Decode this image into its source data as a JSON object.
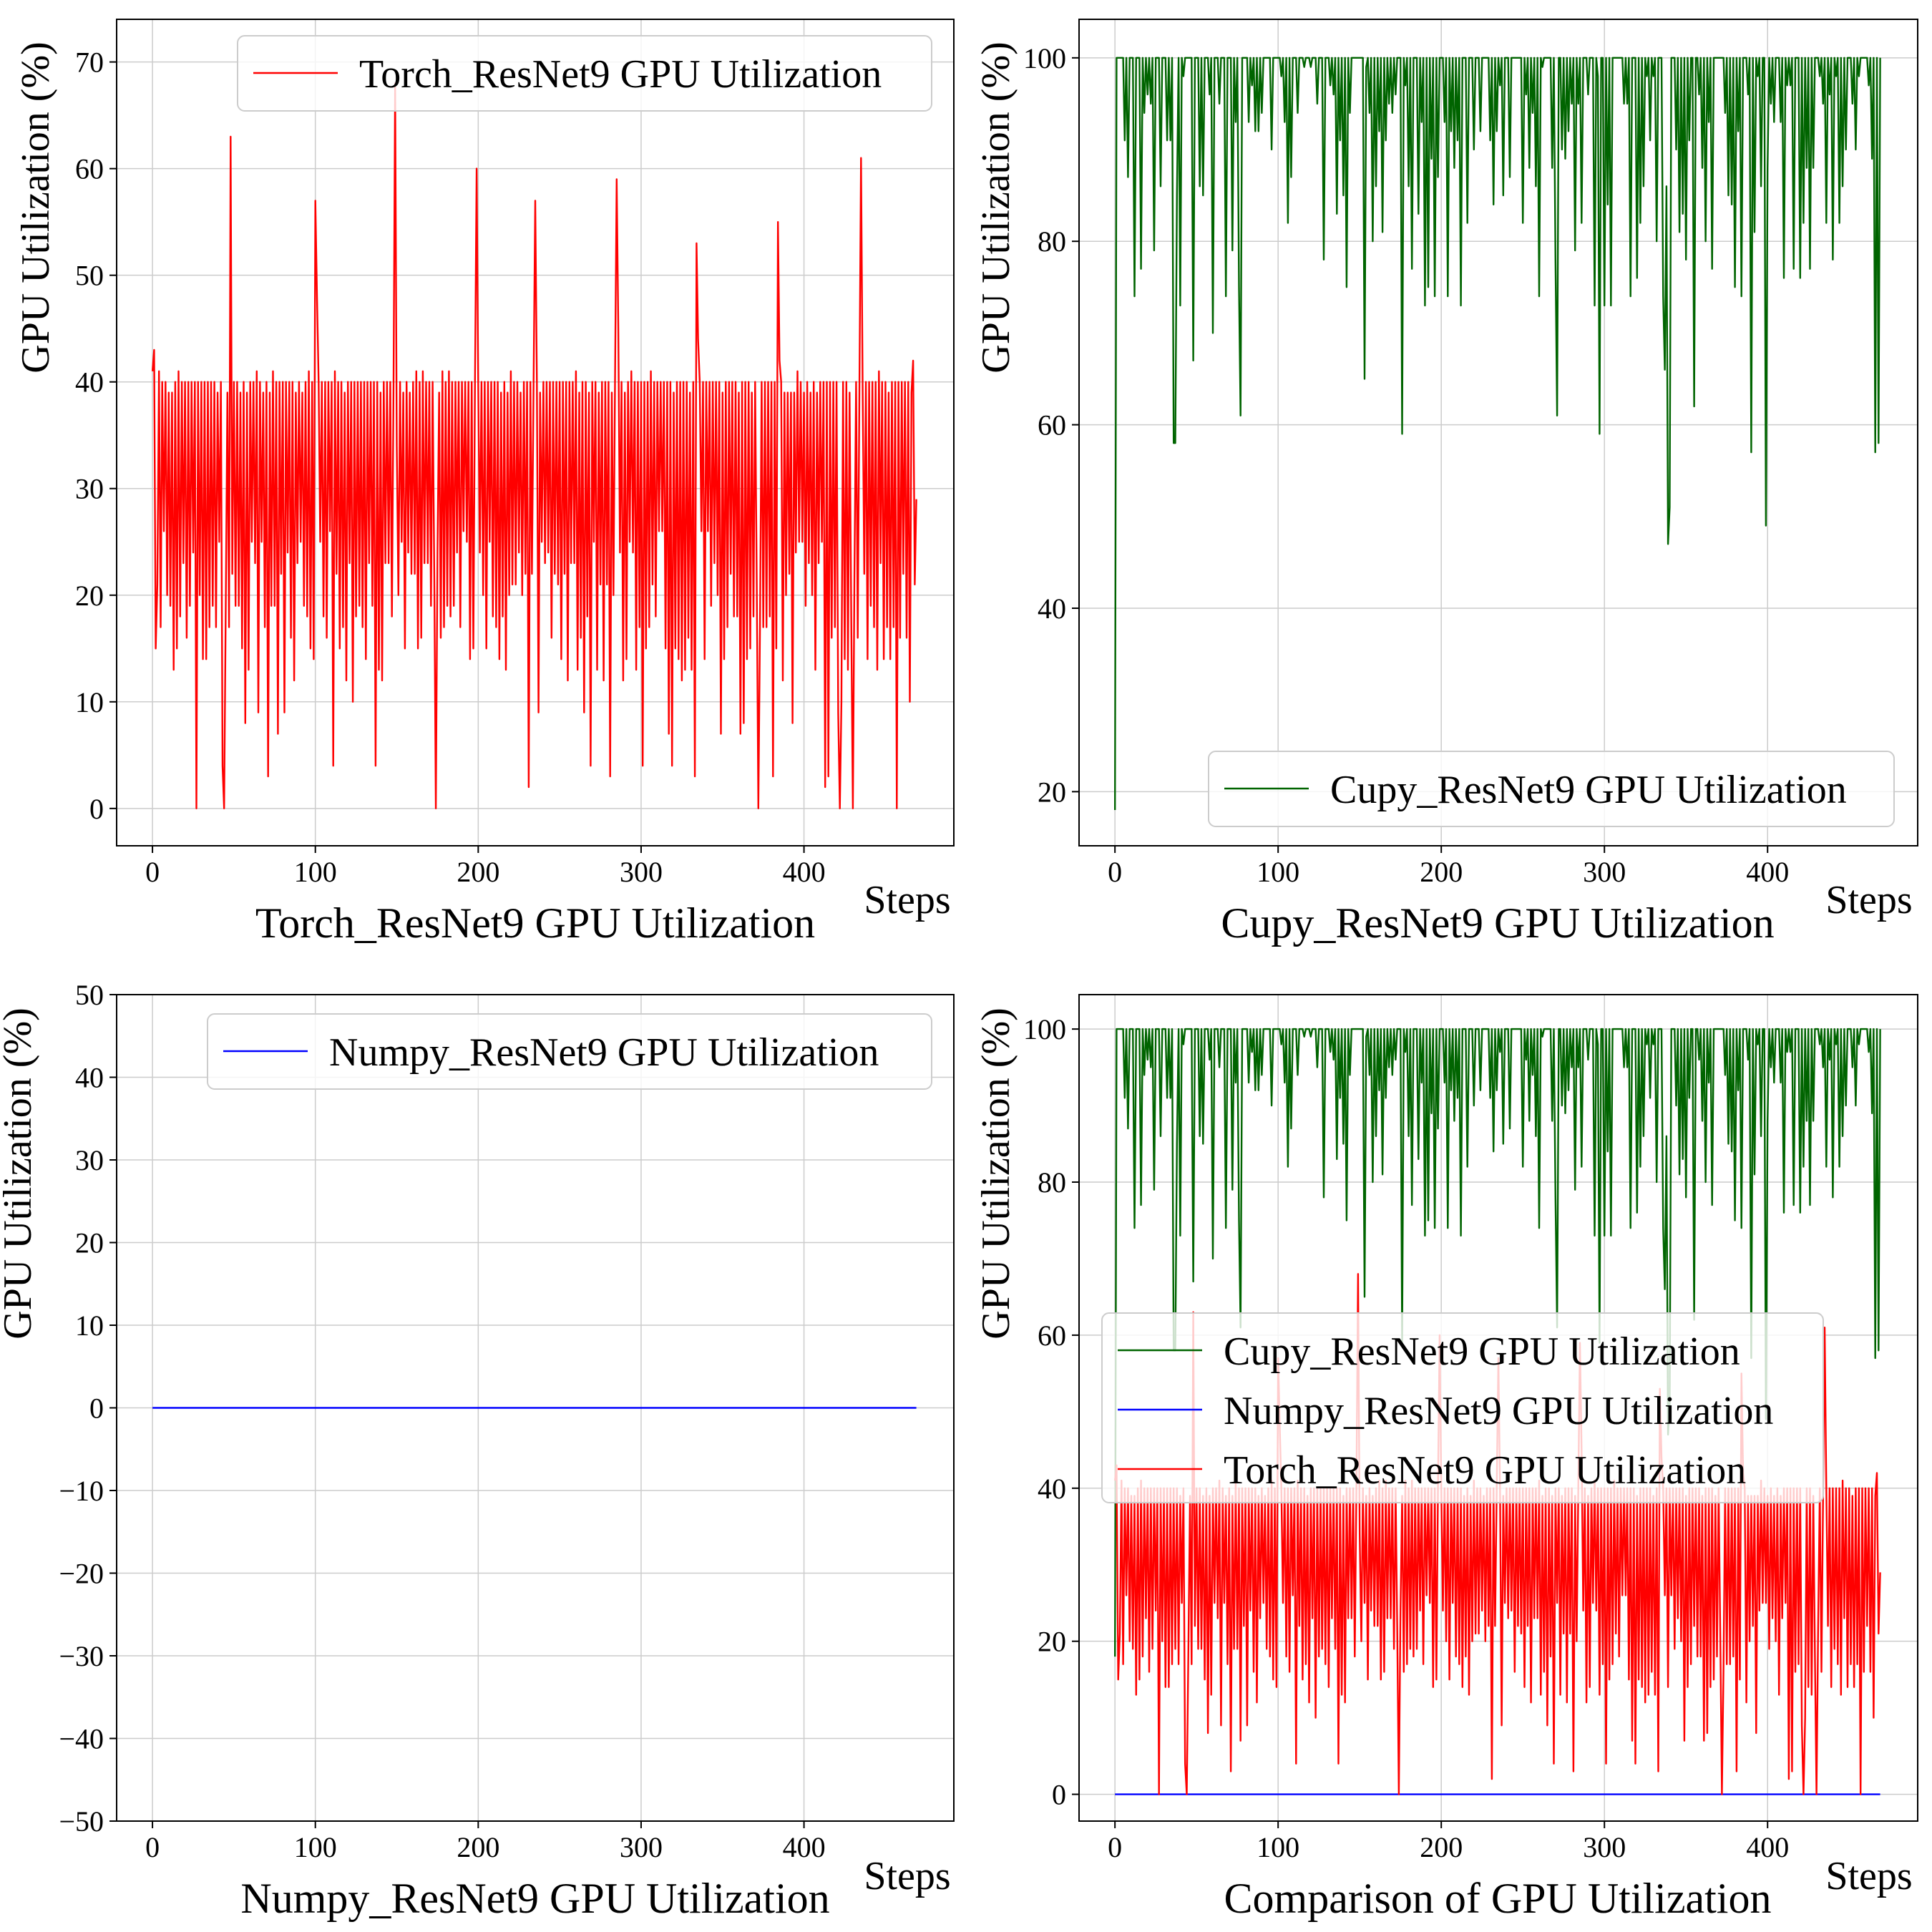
{
  "chart_data": [
    {
      "type": "line",
      "id": "torch",
      "title": "Torch_ResNet9 GPU Utilization",
      "xlabel": "Steps",
      "ylabel": "GPU Utilization (%)",
      "xlim": [
        -22,
        492
      ],
      "ylim": [
        -3.5,
        74
      ],
      "xticks": [
        0,
        100,
        200,
        300,
        400
      ],
      "yticks": [
        0,
        10,
        20,
        30,
        40,
        50,
        60,
        70
      ],
      "grid": true,
      "legend_position": "top-right",
      "series": [
        {
          "name": "Torch_ResNet9 GPU Utilization",
          "color": "#ff0000",
          "generator": "torch",
          "length": 470,
          "spikes": [
            [
              48,
              63
            ],
            [
              100,
              57
            ],
            [
              101,
              48
            ],
            [
              149,
              68
            ],
            [
              150,
              34
            ],
            [
              199,
              60
            ],
            [
              235,
              57
            ],
            [
              285,
              59
            ],
            [
              286,
              45
            ],
            [
              334,
              53
            ],
            [
              335,
              44
            ],
            [
              384,
              55
            ],
            [
              385,
              42
            ],
            [
              435,
              61
            ],
            [
              436,
              40
            ]
          ],
          "zeros": [
            27,
            44,
            174,
            372,
            422,
            430,
            457
          ]
        }
      ]
    },
    {
      "type": "line",
      "id": "cupy",
      "title": "Cupy_ResNet9 GPU Utilization",
      "xlabel": "Steps",
      "ylabel": "GPU Utilization (%)",
      "xlim": [
        -22,
        492
      ],
      "ylim": [
        14.1,
        104.2
      ],
      "xticks": [
        0,
        100,
        200,
        300,
        400
      ],
      "yticks": [
        20,
        40,
        60,
        80,
        100
      ],
      "grid": true,
      "legend_position": "bottom-right",
      "series": [
        {
          "name": "Cupy_ResNet9 GPU Utilization",
          "color": "#006400",
          "generator": "cupy",
          "length": 470,
          "start": 18,
          "dips": [
            [
              36,
              58
            ],
            [
              37,
              58
            ],
            [
              48,
              67
            ],
            [
              60,
              70
            ],
            [
              77,
              61
            ],
            [
              153,
              65
            ],
            [
              176,
              59
            ],
            [
              271,
              61
            ],
            [
              297,
              59
            ],
            [
              337,
              66
            ],
            [
              339,
              47
            ],
            [
              340,
              51
            ],
            [
              355,
              62
            ],
            [
              390,
              57
            ],
            [
              399,
              49
            ],
            [
              466,
              57
            ],
            [
              468,
              58
            ]
          ]
        }
      ]
    },
    {
      "type": "line",
      "id": "numpy",
      "title": "Numpy_ResNet9 GPU Utilization",
      "xlabel": "Steps",
      "ylabel": "GPU Utilization (%)",
      "xlim": [
        -22,
        492
      ],
      "ylim": [
        -50,
        50
      ],
      "xticks": [
        0,
        100,
        200,
        300,
        400
      ],
      "yticks": [
        -50,
        -40,
        -30,
        -20,
        -10,
        0,
        10,
        20,
        30,
        40,
        50
      ],
      "grid": true,
      "legend_position": "top-right",
      "series": [
        {
          "name": "Numpy_ResNet9 GPU Utilization",
          "color": "#0000ff",
          "generator": "constant",
          "length": 470,
          "value": 0
        }
      ]
    },
    {
      "type": "line",
      "id": "comparison",
      "title": "Comparison of GPU Utilization",
      "xlabel": "Steps",
      "ylabel": "GPU Utilization (%)",
      "xlim": [
        -22,
        492
      ],
      "ylim": [
        -3.5,
        104.5
      ],
      "xticks": [
        0,
        100,
        200,
        300,
        400
      ],
      "yticks": [
        0,
        20,
        40,
        60,
        80,
        100
      ],
      "grid": true,
      "legend_position": "center-right",
      "series": [
        {
          "name": "Cupy_ResNet9 GPU Utilization",
          "color": "#006400",
          "source": "cupy"
        },
        {
          "name": "Numpy_ResNet9 GPU Utilization",
          "color": "#0000ff",
          "source": "numpy"
        },
        {
          "name": "Torch_ResNet9 GPU Utilization",
          "color": "#ff0000",
          "source": "torch"
        }
      ]
    }
  ]
}
